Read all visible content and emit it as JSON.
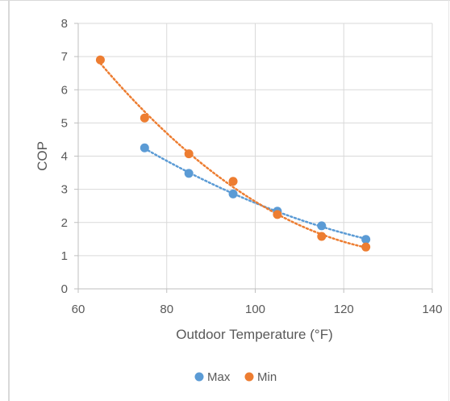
{
  "chart_data": {
    "type": "scatter",
    "title": "",
    "xlabel": "Outdoor Temperature (°F)",
    "ylabel": "COP",
    "xlim": [
      60,
      140
    ],
    "ylim": [
      0,
      8
    ],
    "xticks": [
      60,
      80,
      100,
      120,
      140
    ],
    "yticks": [
      0,
      1,
      2,
      3,
      4,
      5,
      6,
      7,
      8
    ],
    "grid": true,
    "legend_position": "bottom",
    "trendlines": "dotted",
    "series": [
      {
        "name": "Max",
        "color": "#5b9bd5",
        "x": [
          75,
          85,
          95,
          105,
          115,
          125
        ],
        "y": [
          4.25,
          3.48,
          2.86,
          2.34,
          1.9,
          1.49
        ]
      },
      {
        "name": "Min",
        "color": "#ed7d31",
        "x": [
          65,
          75,
          85,
          95,
          105,
          115,
          125
        ],
        "y": [
          6.9,
          5.15,
          4.07,
          3.24,
          2.24,
          1.58,
          1.26
        ]
      }
    ]
  }
}
